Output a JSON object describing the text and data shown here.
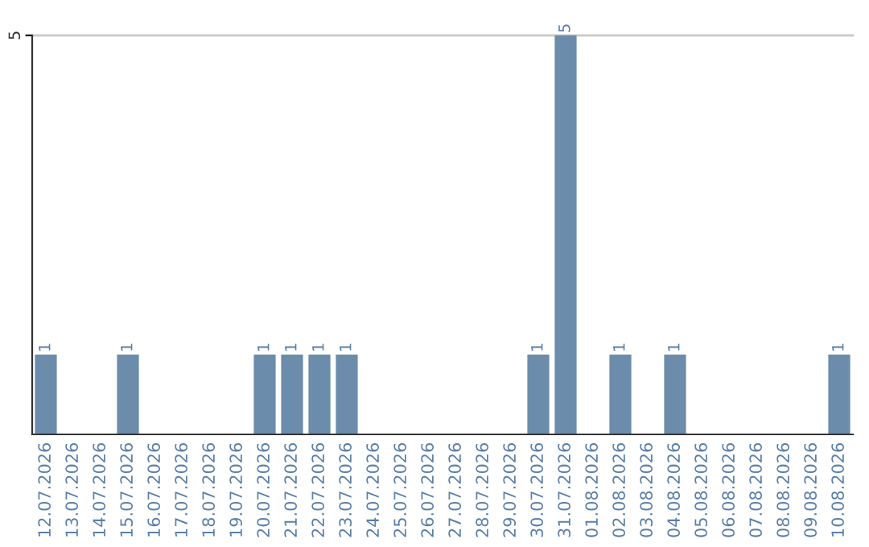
{
  "chart_data": {
    "type": "bar",
    "categories": [
      "12.07.2026",
      "13.07.2026",
      "14.07.2026",
      "15.07.2026",
      "16.07.2026",
      "17.07.2026",
      "18.07.2026",
      "19.07.2026",
      "20.07.2026",
      "21.07.2026",
      "22.07.2026",
      "23.07.2026",
      "24.07.2026",
      "25.07.2026",
      "26.07.2026",
      "27.07.2026",
      "28.07.2026",
      "29.07.2026",
      "30.07.2026",
      "31.07.2026",
      "01.08.2026",
      "02.08.2026",
      "03.08.2026",
      "04.08.2026",
      "05.08.2026",
      "06.08.2026",
      "07.08.2026",
      "08.08.2026",
      "09.08.2026",
      "10.08.2026"
    ],
    "values": [
      1,
      0,
      0,
      1,
      0,
      0,
      0,
      0,
      1,
      1,
      1,
      1,
      0,
      0,
      0,
      0,
      0,
      0,
      1,
      5,
      0,
      1,
      0,
      1,
      0,
      0,
      0,
      0,
      0,
      1
    ],
    "value_labels": [
      "1",
      null,
      null,
      "1",
      null,
      null,
      null,
      null,
      "1",
      "1",
      "1",
      "1",
      null,
      null,
      null,
      null,
      null,
      null,
      "1",
      "5",
      null,
      "1",
      null,
      "1",
      null,
      null,
      null,
      null,
      null,
      "1"
    ],
    "color": "#6b8cab",
    "ylim": [
      0,
      5
    ],
    "yticks": [
      5
    ],
    "ref_lines": [
      {
        "axis": "y",
        "value": 5,
        "color": "#cccccc"
      }
    ]
  }
}
